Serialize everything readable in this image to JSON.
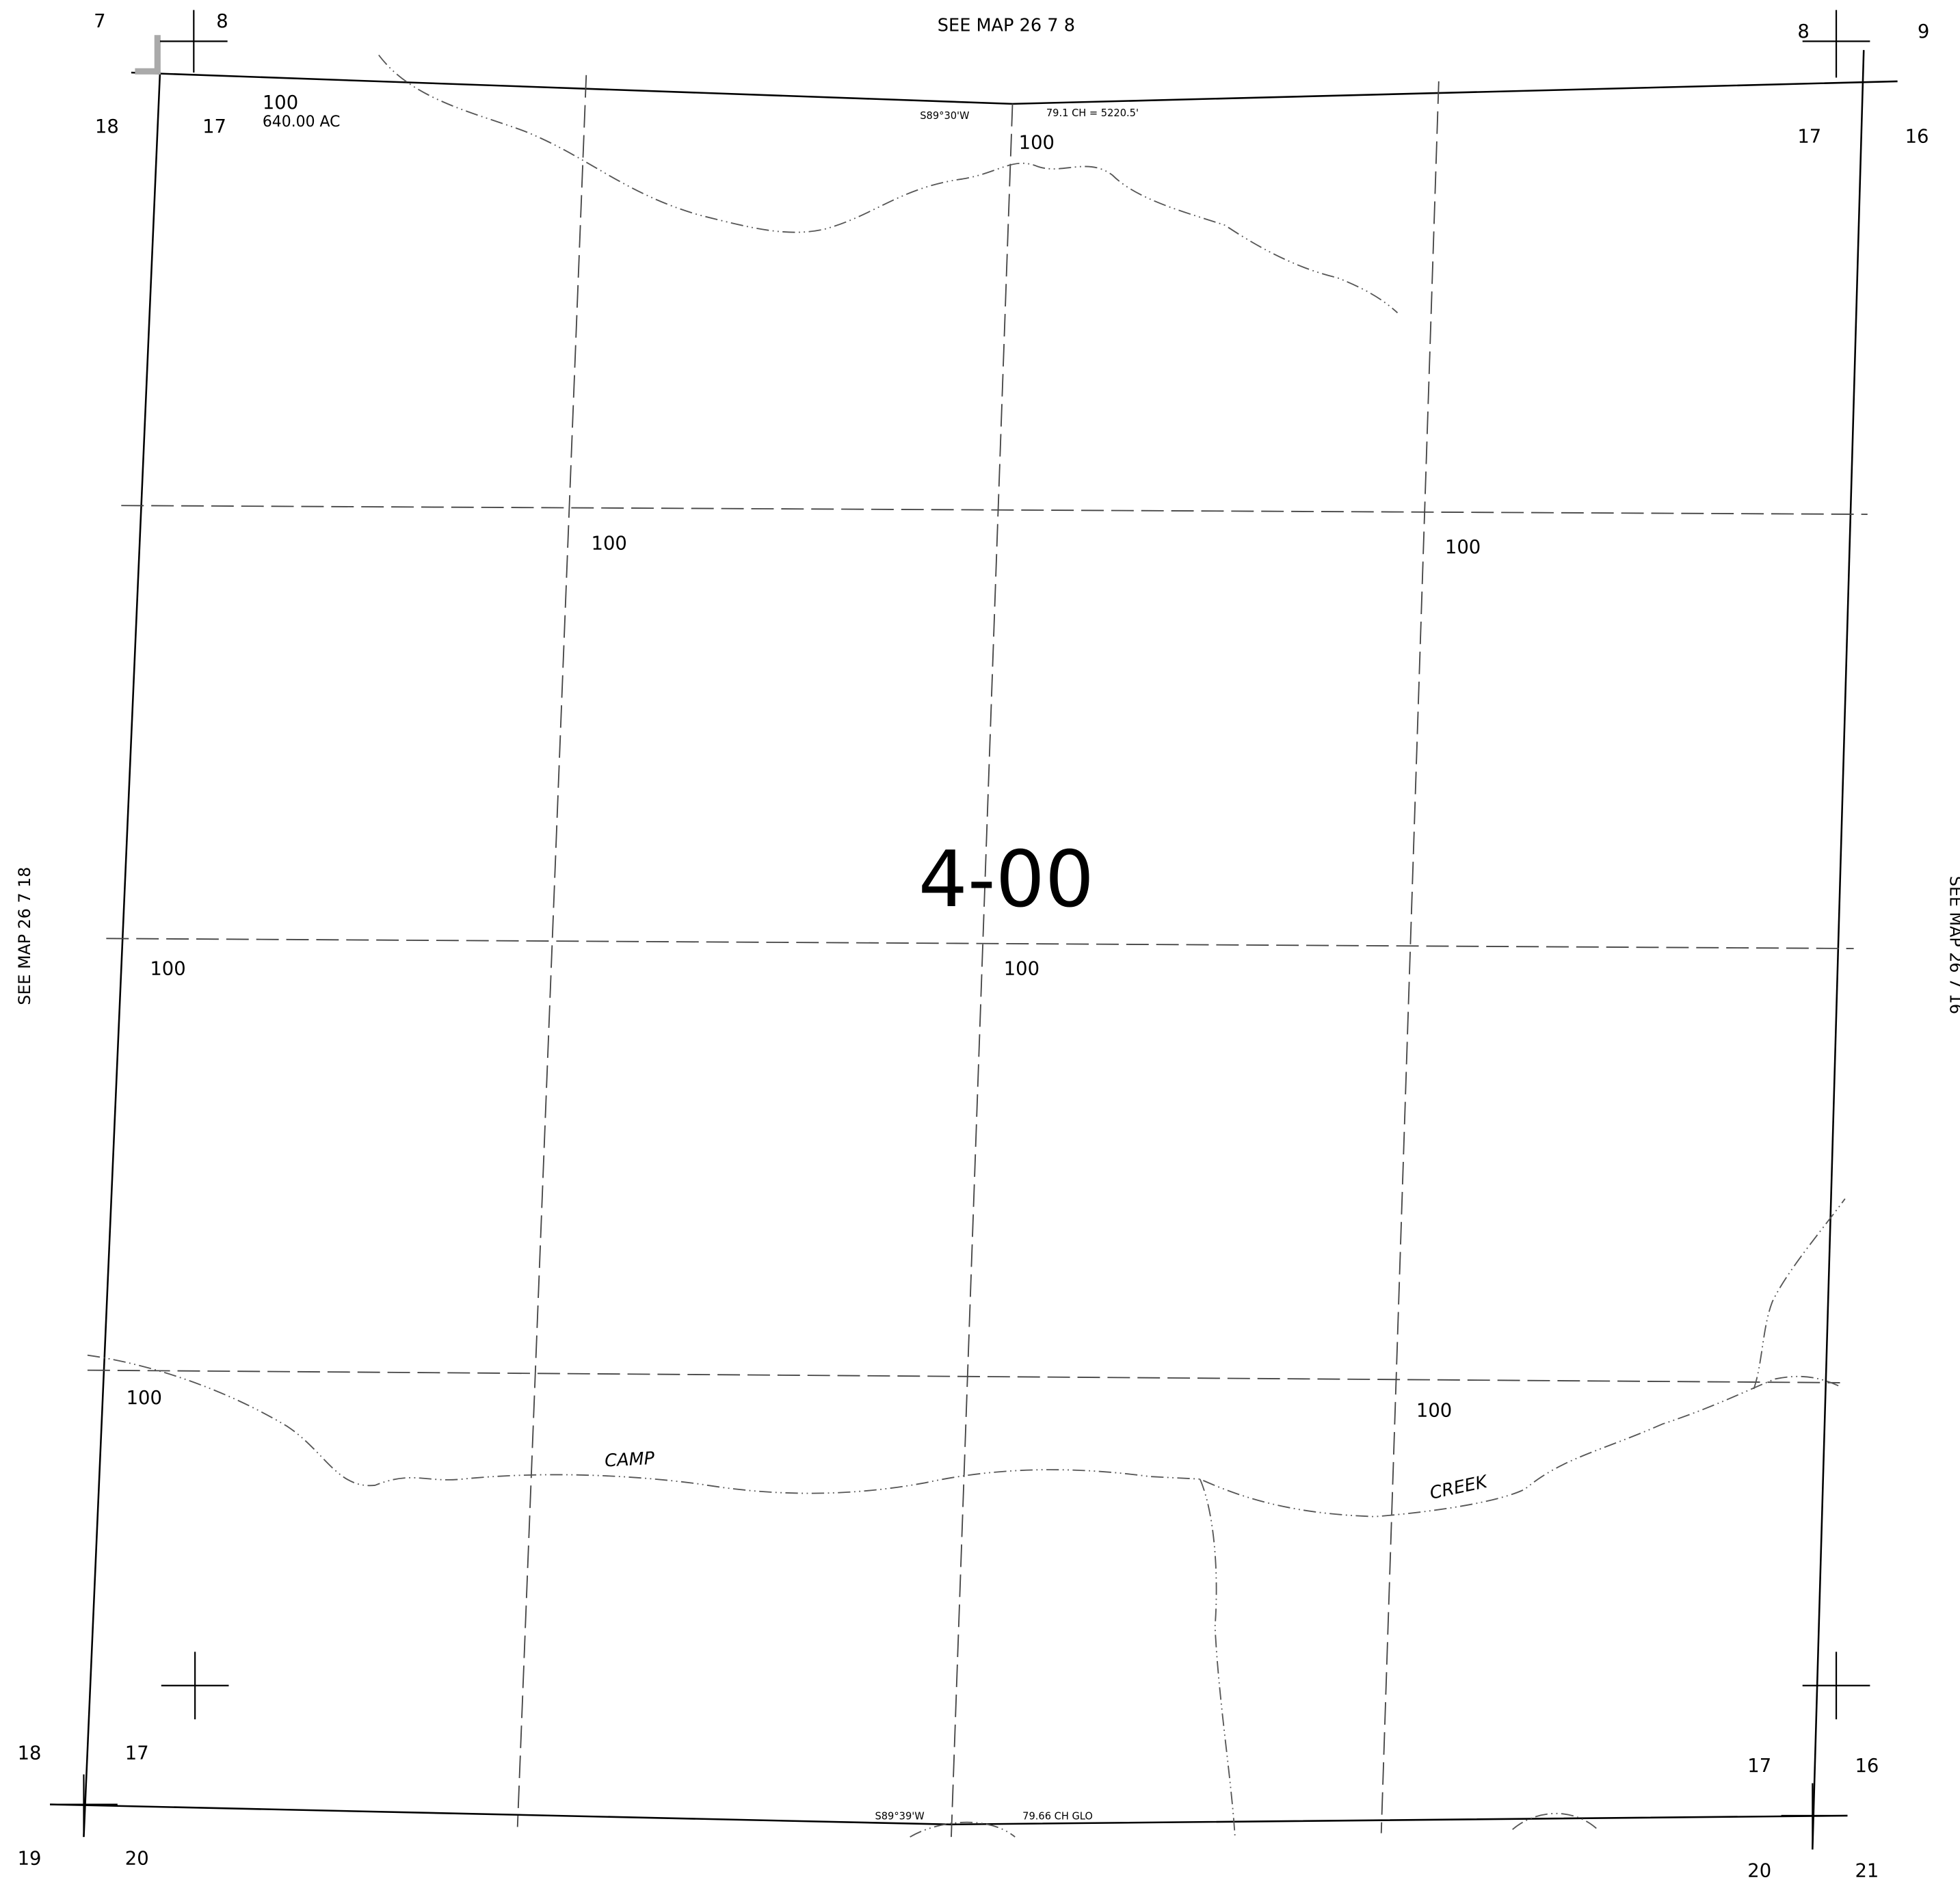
{
  "map_number": "4-00",
  "see_map": {
    "top": "SEE MAP  26  7  8",
    "left": "SEE MAP 26  7  18",
    "right": "SEE MAP 26  7  16"
  },
  "sections": {
    "top_left": [
      "7",
      "8",
      "18",
      "17"
    ],
    "top_right": [
      "8",
      "9",
      "17",
      "16"
    ],
    "bottom_left": [
      "18",
      "17",
      "19",
      "20"
    ],
    "bottom_right": [
      "17",
      "16",
      "20",
      "21"
    ]
  },
  "parcels": [
    "100",
    "100",
    "100",
    "100",
    "100",
    "100",
    "100",
    "100"
  ],
  "acreage": "640.00 AC",
  "bearings": {
    "north": [
      "S89°30'W",
      "79.1 CH = 5220.5'"
    ],
    "south": [
      "S89°39'W",
      "79.66 CH  GLO"
    ]
  },
  "creek": [
    "CAMP",
    "CREEK"
  ]
}
